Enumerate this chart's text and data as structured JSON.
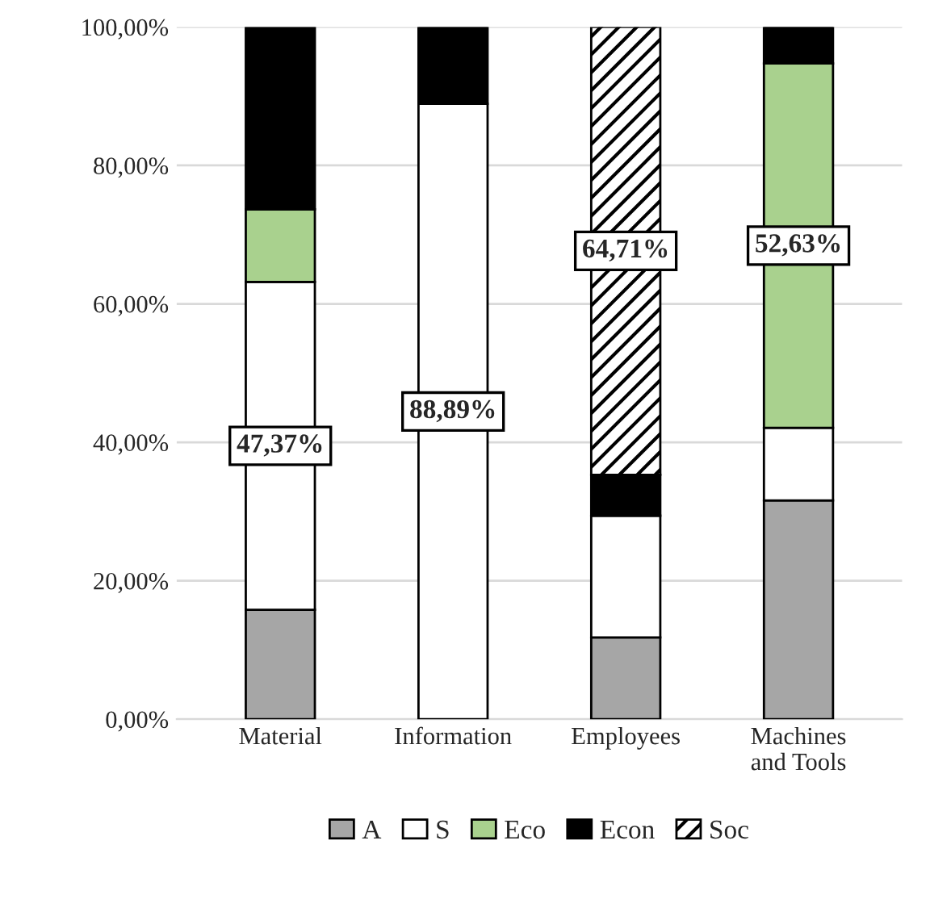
{
  "chart_data": {
    "type": "bar",
    "stacked": true,
    "categories": [
      "Material",
      "Information",
      "Employees",
      "Machines\nand Tools"
    ],
    "series": [
      {
        "name": "A",
        "color": "#a6a6a6",
        "values": [
          15.8,
          null,
          11.8,
          31.6
        ],
        "value_labels": [
          null,
          null,
          null,
          null
        ]
      },
      {
        "name": "S",
        "color": "#ffffff",
        "values": [
          47.37,
          88.89,
          17.6,
          10.5
        ],
        "value_labels": [
          "47,37%",
          "88,89%",
          null,
          null
        ]
      },
      {
        "name": "Eco",
        "color": "#a9d18e",
        "values": [
          10.5,
          null,
          null,
          52.63
        ],
        "value_labels": [
          null,
          null,
          null,
          "52,63%"
        ]
      },
      {
        "name": "Econ",
        "color": "#000000",
        "values": [
          26.3,
          11.1,
          5.9,
          5.3
        ],
        "value_labels": [
          null,
          null,
          null,
          null
        ]
      },
      {
        "name": "Soc",
        "color": "#000000",
        "values": [
          null,
          null,
          64.71,
          null
        ],
        "value_labels": [
          null,
          null,
          "64,71%",
          null
        ]
      }
    ],
    "ylim": [
      0,
      100
    ],
    "yticks": [
      {
        "value": 0,
        "label": "0,00%"
      },
      {
        "value": 20,
        "label": "20,00%"
      },
      {
        "value": 40,
        "label": "40,00%"
      },
      {
        "value": 60,
        "label": "60,00%"
      },
      {
        "value": 80,
        "label": "80,00%"
      },
      {
        "value": 100,
        "label": "100,00%"
      }
    ],
    "grid": "y",
    "legend": "bottom"
  }
}
